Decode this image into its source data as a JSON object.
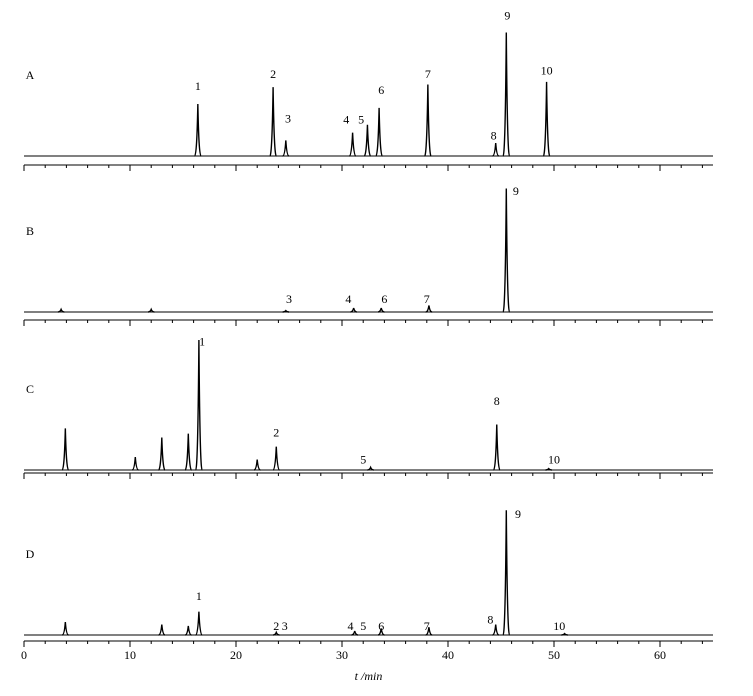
{
  "chart_data": [
    {
      "type": "line",
      "panel": "A",
      "xlim": [
        0,
        65
      ],
      "ylim": [
        0,
        100
      ],
      "x": [
        16.4,
        23.5,
        24.7,
        31.0,
        32.4,
        33.5,
        38.1,
        44.5,
        45.5,
        49.3
      ],
      "values": [
        40,
        53,
        12,
        18,
        24,
        37,
        55,
        10,
        95,
        57
      ],
      "annotations": [
        {
          "text": "1",
          "x": 16.4,
          "y": 53
        },
        {
          "text": "2",
          "x": 23.5,
          "y": 62
        },
        {
          "text": "3",
          "x": 24.9,
          "y": 28
        },
        {
          "text": "4",
          "x": 30.4,
          "y": 27
        },
        {
          "text": "5",
          "x": 31.8,
          "y": 27
        },
        {
          "text": "6",
          "x": 33.7,
          "y": 50
        },
        {
          "text": "7",
          "x": 38.1,
          "y": 62
        },
        {
          "text": "8",
          "x": 44.3,
          "y": 15
        },
        {
          "text": "9",
          "x": 45.6,
          "y": 107
        },
        {
          "text": "10",
          "x": 49.3,
          "y": 65
        }
      ]
    },
    {
      "type": "line",
      "panel": "B",
      "xlim": [
        0,
        65
      ],
      "ylim": [
        0,
        100
      ],
      "x": [
        3.5,
        12.0,
        24.7,
        31.1,
        33.7,
        38.2,
        45.5
      ],
      "values": [
        2,
        2,
        1,
        3,
        3,
        5,
        95
      ],
      "annotations": [
        {
          "text": "3",
          "x": 25.0,
          "y": 9
        },
        {
          "text": "4",
          "x": 30.6,
          "y": 9
        },
        {
          "text": "6",
          "x": 34.0,
          "y": 9
        },
        {
          "text": "7",
          "x": 38.0,
          "y": 9
        },
        {
          "text": "9",
          "x": 46.4,
          "y": 92
        }
      ]
    },
    {
      "type": "line",
      "panel": "C",
      "xlim": [
        0,
        65
      ],
      "ylim": [
        0,
        100
      ],
      "x": [
        3.9,
        10.5,
        13.0,
        15.5,
        16.5,
        22.0,
        23.8,
        32.7,
        44.6,
        49.5
      ],
      "values": [
        32,
        10,
        25,
        28,
        100,
        8,
        18,
        2,
        35,
        1
      ],
      "annotations": [
        {
          "text": "1",
          "x": 16.8,
          "y": 98
        },
        {
          "text": "2",
          "x": 23.8,
          "y": 28
        },
        {
          "text": "5",
          "x": 32.0,
          "y": 7
        },
        {
          "text": "8",
          "x": 44.6,
          "y": 52
        },
        {
          "text": "10",
          "x": 50.0,
          "y": 7
        }
      ]
    },
    {
      "type": "line",
      "panel": "D",
      "xlim": [
        0,
        65
      ],
      "ylim": [
        0,
        100
      ],
      "x": [
        3.9,
        13.0,
        15.5,
        16.5,
        23.8,
        31.2,
        33.7,
        38.2,
        44.5,
        45.5,
        51.0
      ],
      "values": [
        10,
        8,
        7,
        18,
        2,
        3,
        5,
        6,
        8,
        96,
        1
      ],
      "annotations": [
        {
          "text": "1",
          "x": 16.5,
          "y": 29
        },
        {
          "text": "2",
          "x": 23.8,
          "y": 6
        },
        {
          "text": "3",
          "x": 24.6,
          "y": 6
        },
        {
          "text": "4",
          "x": 30.8,
          "y": 6
        },
        {
          "text": "5",
          "x": 32.0,
          "y": 6
        },
        {
          "text": "6",
          "x": 33.7,
          "y": 6
        },
        {
          "text": "7",
          "x": 38.0,
          "y": 6
        },
        {
          "text": "8",
          "x": 44.0,
          "y": 11
        },
        {
          "text": "9",
          "x": 46.6,
          "y": 92
        },
        {
          "text": "10",
          "x": 50.5,
          "y": 6
        }
      ],
      "xticks": [
        0,
        10,
        20,
        30,
        40,
        50,
        60
      ],
      "xlabel": "t /min"
    }
  ]
}
